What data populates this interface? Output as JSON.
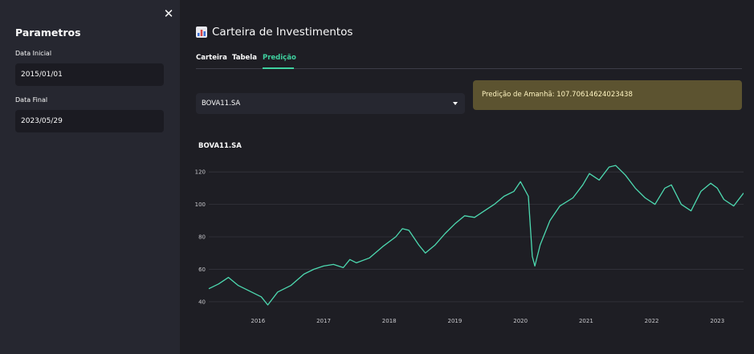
{
  "sidebar": {
    "close_icon": "close-icon",
    "close_glyph": "✕",
    "title": "Parametros",
    "start_label": "Data Inicial",
    "start_value": "2015/01/01",
    "end_label": "Data Final",
    "end_value": "2023/05/29"
  },
  "main": {
    "title_icon": "bar-chart-icon",
    "title": "Carteira de Investimentos",
    "tabs": [
      {
        "label": "Carteira",
        "active": false
      },
      {
        "label": "Tabela",
        "active": false
      },
      {
        "label": "Predição",
        "active": true
      }
    ],
    "ticker_select": "BOVA11.SA",
    "prediction": "Predição de Amanhã: 107.70614624023438",
    "chart_title": "BOVA11.SA"
  },
  "colors": {
    "accent": "#3fd2a0",
    "line": "#4dd9b0",
    "alert_bg": "#5c5330",
    "alert_text": "#fff5c2"
  },
  "chart_data": {
    "type": "line",
    "title": "BOVA11.SA",
    "xlabel": "",
    "ylabel": "",
    "x_ticks": [
      "2016",
      "2017",
      "2018",
      "2019",
      "2020",
      "2021",
      "2022",
      "2023"
    ],
    "y_ticks": [
      40,
      60,
      80,
      100,
      120
    ],
    "xlim": [
      2015.25,
      2023.4
    ],
    "ylim": [
      35,
      128
    ],
    "grid": true,
    "series": [
      {
        "x": [
          2015.25,
          2015.4,
          2015.55,
          2015.7,
          2015.85,
          2016.0,
          2016.05,
          2016.15,
          2016.3,
          2016.5,
          2016.7,
          2016.85,
          2017.0,
          2017.15,
          2017.3,
          2017.4,
          2017.5,
          2017.7,
          2017.9,
          2018.1,
          2018.2,
          2018.3,
          2018.45,
          2018.55,
          2018.7,
          2018.85,
          2019.0,
          2019.15,
          2019.3,
          2019.45,
          2019.6,
          2019.75,
          2019.9,
          2020.0,
          2020.12,
          2020.18,
          2020.22,
          2020.3,
          2020.45,
          2020.6,
          2020.8,
          2020.95,
          2021.05,
          2021.2,
          2021.35,
          2021.45,
          2021.6,
          2021.75,
          2021.9,
          2022.05,
          2022.2,
          2022.3,
          2022.45,
          2022.6,
          2022.75,
          2022.9,
          2023.0,
          2023.1,
          2023.25,
          2023.4
        ],
        "values": [
          48,
          51,
          55,
          50,
          47,
          44,
          43,
          38,
          46,
          50,
          57,
          60,
          62,
          63,
          61,
          66,
          64,
          67,
          74,
          80,
          85,
          84,
          75,
          70,
          75,
          82,
          88,
          93,
          92,
          96,
          100,
          105,
          108,
          114,
          105,
          68,
          62,
          75,
          90,
          99,
          104,
          112,
          119,
          115,
          123,
          124,
          118,
          110,
          104,
          100,
          110,
          112,
          100,
          96,
          108,
          113,
          110,
          103,
          99,
          107
        ]
      }
    ]
  }
}
